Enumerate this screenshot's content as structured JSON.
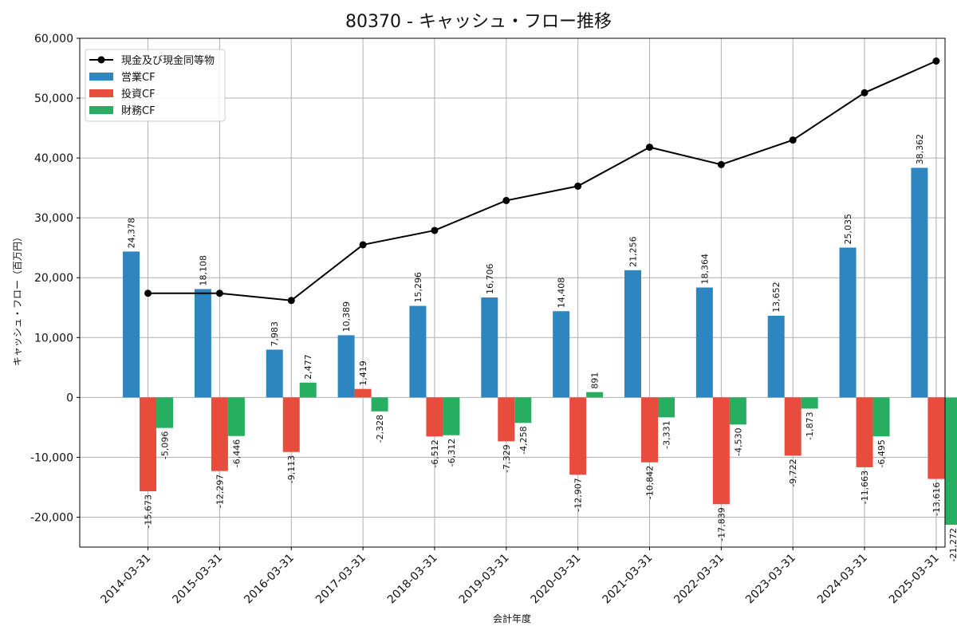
{
  "chart_data": {
    "type": "bar",
    "title": "80370 - キャッシュ・フロー推移",
    "xlabel": "会計年度",
    "ylabel": "キャッシュ・フロー（百万円）",
    "ylim": [
      -25000,
      60000
    ],
    "yticks": [
      -20000,
      -10000,
      0,
      10000,
      20000,
      30000,
      40000,
      50000,
      60000
    ],
    "ytick_labels": [
      "-20,000",
      "-10,000",
      "0",
      "10,000",
      "20,000",
      "30,000",
      "40,000",
      "50,000",
      "60,000"
    ],
    "grid": true,
    "legend_position": "top-left",
    "categories": [
      "2014-03-31",
      "2015-03-31",
      "2016-03-31",
      "2017-03-31",
      "2018-03-31",
      "2019-03-31",
      "2020-03-31",
      "2021-03-31",
      "2022-03-31",
      "2023-03-31",
      "2024-03-31",
      "2025-03-31"
    ],
    "series": [
      {
        "name": "営業CF",
        "kind": "bar",
        "color": "#2e86c1",
        "values": [
          24378,
          18108,
          7983,
          10389,
          15296,
          16706,
          14408,
          21256,
          18364,
          13652,
          25035,
          38362
        ],
        "labels": [
          "24,378",
          "18,108",
          "7,983",
          "10,389",
          "15,296",
          "16,706",
          "14,408",
          "21,256",
          "18,364",
          "13,652",
          "25,035",
          "38,362"
        ]
      },
      {
        "name": "投資CF",
        "kind": "bar",
        "color": "#e74c3c",
        "values": [
          -15673,
          -12297,
          -9113,
          1419,
          -6512,
          -7329,
          -12907,
          -10842,
          -17839,
          -9722,
          -11663,
          -13616
        ],
        "labels": [
          "-15,673",
          "-12,297",
          "-9,113",
          "1,419",
          "-6,512",
          "-7,329",
          "-12,907",
          "-10,842",
          "-17,839",
          "-9,722",
          "-11,663",
          "-13,616"
        ]
      },
      {
        "name": "財務CF",
        "kind": "bar",
        "color": "#27ae60",
        "values": [
          -5096,
          -6446,
          2477,
          -2328,
          -6312,
          -4258,
          891,
          -3331,
          -4530,
          -1873,
          -6495,
          -21272
        ],
        "labels": [
          "-5,096",
          "-6,446",
          "2,477",
          "-2,328",
          "-6,312",
          "-4,258",
          "891",
          "-3,331",
          "-4,530",
          "-1,873",
          "-6,495",
          "-21,272"
        ]
      },
      {
        "name": "現金及び現金同等物",
        "kind": "line",
        "color": "#000000",
        "values": [
          17400,
          17400,
          16200,
          25500,
          27900,
          32900,
          35300,
          41800,
          38900,
          43000,
          50900,
          56200
        ]
      }
    ],
    "legend": [
      "現金及び現金同等物",
      "営業CF",
      "投資CF",
      "財務CF"
    ]
  }
}
